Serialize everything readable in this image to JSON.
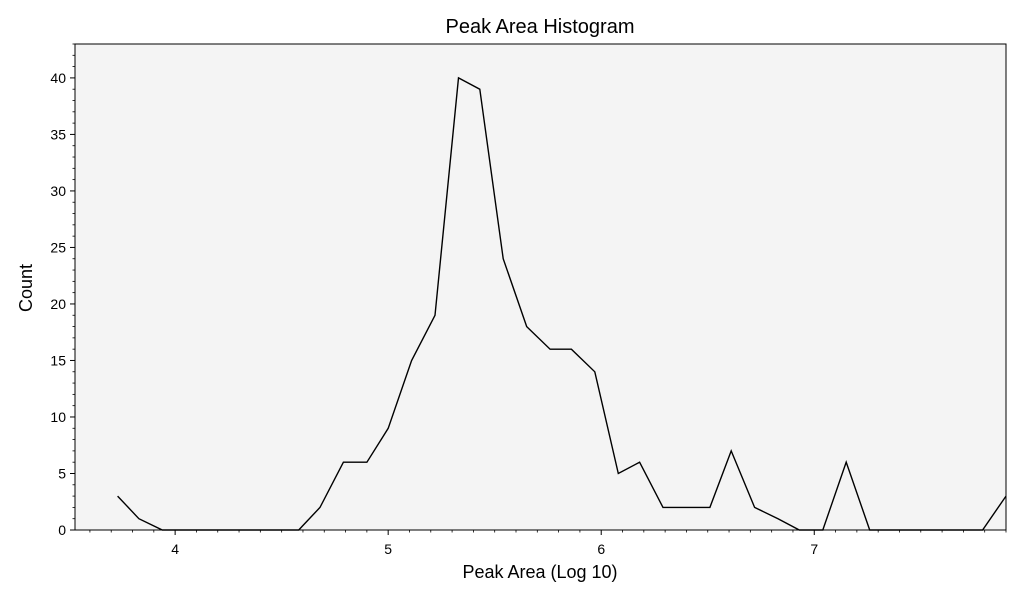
{
  "chart_data": {
    "type": "line",
    "title": "Peak Area Histogram",
    "xlabel": "Peak Area (Log 10)",
    "ylabel": "Count",
    "xlim": [
      3.53,
      7.9
    ],
    "ylim": [
      0,
      43
    ],
    "x_ticks": [
      4,
      5,
      6,
      7
    ],
    "y_ticks": [
      0,
      5,
      10,
      15,
      20,
      25,
      30,
      35,
      40
    ],
    "grid": false,
    "background": "#f4f4f4",
    "line_color": "#000000",
    "series": [
      {
        "x": [
          3.73,
          3.83,
          3.94,
          4.05,
          4.15,
          4.26,
          4.36,
          4.47,
          4.58,
          4.68,
          4.79,
          4.9,
          5.0,
          5.11,
          5.22,
          5.33,
          5.43,
          5.54,
          5.65,
          5.76,
          5.86,
          5.97,
          6.08,
          6.18,
          6.29,
          6.4,
          6.51,
          6.61,
          6.72,
          6.83,
          6.93,
          7.04,
          7.15,
          7.26,
          7.36,
          7.47,
          7.58,
          7.69,
          7.79,
          7.9
        ],
        "values": [
          3,
          1,
          0,
          0,
          0,
          0,
          0,
          0,
          0,
          2,
          6,
          6,
          9,
          15,
          19,
          40,
          39,
          24,
          18,
          16,
          16,
          14,
          5,
          6,
          2,
          2,
          2,
          7,
          2,
          1,
          0,
          0,
          6,
          0,
          0,
          0,
          0,
          0,
          0,
          3
        ]
      }
    ]
  }
}
